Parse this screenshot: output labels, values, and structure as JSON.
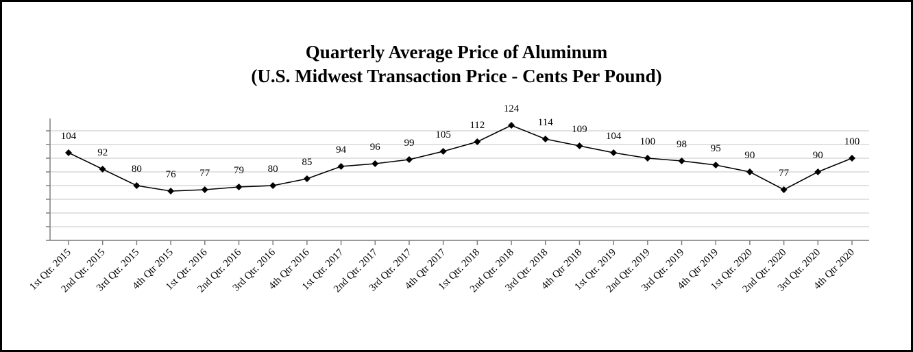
{
  "chart_data": {
    "type": "line",
    "title": "Quarterly Average Price of Aluminum",
    "subtitle": "(U.S. Midwest Transaction Price - Cents Per Pound)",
    "xlabel": "",
    "ylabel": "",
    "categories": [
      "1st Qtr. 2015",
      "2nd Qtr. 2015",
      "3rd Qtr. 2015",
      "4th Qtr 2015",
      "1st Qtr. 2016",
      "2nd Qtr. 2016",
      "3rd Qtr. 2016",
      "4th Qtr 2016",
      "1st Qtr. 2017",
      "2nd Qtr. 2017",
      "3rd Qtr. 2017",
      "4th Qtr 2017",
      "1st Qtr. 2018",
      "2nd Qtr. 2018",
      "3rd Qtr. 2018",
      "4th Qtr 2018",
      "1st Qtr. 2019",
      "2nd Qtr. 2019",
      "3rd Qtr. 2019",
      "4th Qtr 2019",
      "1st Qtr. 2020",
      "2nd Qtr. 2020",
      "3rd Qtr. 2020",
      "4th Qtr 2020"
    ],
    "series": [
      {
        "values": [
          104,
          92,
          80,
          76,
          77,
          79,
          80,
          85,
          94,
          96,
          99,
          105,
          112,
          124,
          114,
          109,
          104,
          100,
          98,
          95,
          90,
          77,
          90,
          100
        ],
        "labels": [
          "104",
          "92",
          "80",
          "76",
          "77",
          "79",
          "80",
          "85",
          "94",
          "96",
          "99",
          "105",
          "112",
          "124",
          "114",
          "109",
          "104",
          "100",
          "98",
          "95",
          "90",
          "77",
          "90",
          "100"
        ]
      }
    ],
    "ylim": [
      40,
      125
    ],
    "y_ticks": [
      40,
      50,
      60,
      70,
      80,
      90,
      100,
      110,
      120
    ],
    "y_tick_labels_visible": false,
    "grid": true,
    "legend": "none",
    "colors": {
      "line": "#000000",
      "marker": "#000000",
      "grid": "#d9d9d9",
      "axis": "#7f7f7f",
      "border": "#000000"
    }
  }
}
